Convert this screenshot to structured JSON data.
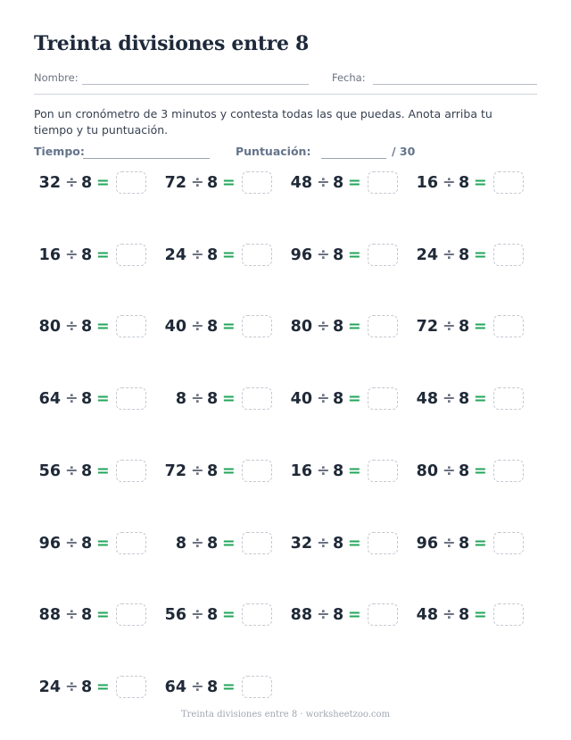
{
  "title": "Treinta divisiones entre 8",
  "header": {
    "name_label": "Nombre:",
    "date_label": "Fecha:"
  },
  "instructions": "Pon un cronómetro de 3 minutos y contesta todas las que puedas. Anota arriba tu tiempo y tu puntuación.",
  "score": {
    "time_label": "Tiempo:",
    "score_label": "Puntuación:",
    "total": "/ 30"
  },
  "operator": "÷",
  "equals": "=",
  "problems": [
    {
      "dividend": "32",
      "divisor": "8"
    },
    {
      "dividend": "72",
      "divisor": "8"
    },
    {
      "dividend": "48",
      "divisor": "8"
    },
    {
      "dividend": "16",
      "divisor": "8"
    },
    {
      "dividend": "16",
      "divisor": "8"
    },
    {
      "dividend": "24",
      "divisor": "8"
    },
    {
      "dividend": "96",
      "divisor": "8"
    },
    {
      "dividend": "24",
      "divisor": "8"
    },
    {
      "dividend": "80",
      "divisor": "8"
    },
    {
      "dividend": "40",
      "divisor": "8"
    },
    {
      "dividend": "80",
      "divisor": "8"
    },
    {
      "dividend": "72",
      "divisor": "8"
    },
    {
      "dividend": "64",
      "divisor": "8"
    },
    {
      "dividend": "8",
      "divisor": "8"
    },
    {
      "dividend": "40",
      "divisor": "8"
    },
    {
      "dividend": "48",
      "divisor": "8"
    },
    {
      "dividend": "56",
      "divisor": "8"
    },
    {
      "dividend": "72",
      "divisor": "8"
    },
    {
      "dividend": "16",
      "divisor": "8"
    },
    {
      "dividend": "80",
      "divisor": "8"
    },
    {
      "dividend": "96",
      "divisor": "8"
    },
    {
      "dividend": "8",
      "divisor": "8"
    },
    {
      "dividend": "32",
      "divisor": "8"
    },
    {
      "dividend": "96",
      "divisor": "8"
    },
    {
      "dividend": "88",
      "divisor": "8"
    },
    {
      "dividend": "56",
      "divisor": "8"
    },
    {
      "dividend": "88",
      "divisor": "8"
    },
    {
      "dividend": "48",
      "divisor": "8"
    },
    {
      "dividend": "24",
      "divisor": "8"
    },
    {
      "dividend": "64",
      "divisor": "8"
    }
  ],
  "footer": "Treinta divisiones entre 8 · worksheetzoo.com"
}
